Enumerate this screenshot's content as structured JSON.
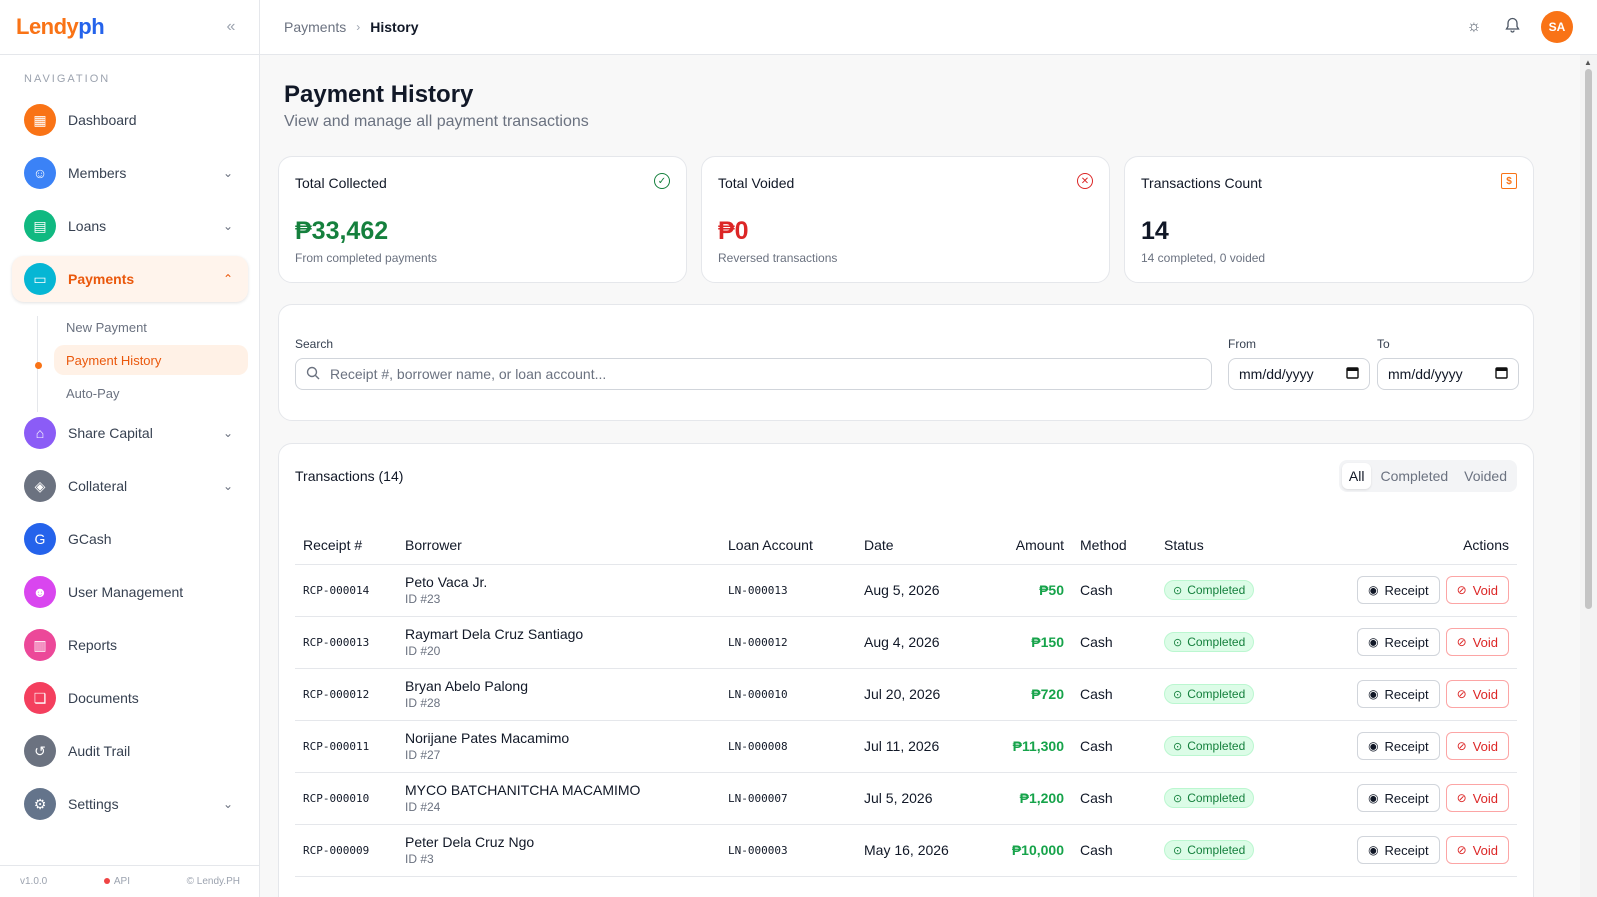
{
  "brand": {
    "part1": "Lendy",
    "part2": "ph"
  },
  "sidebar": {
    "nav_title": "NAVIGATION",
    "items": [
      {
        "label": "Dashboard",
        "icon": "dashboard-icon",
        "color": "#f97316",
        "expand": false
      },
      {
        "label": "Members",
        "icon": "members-icon",
        "color": "#3b82f6",
        "expand": true
      },
      {
        "label": "Loans",
        "icon": "loans-icon",
        "color": "#10b981",
        "expand": true
      },
      {
        "label": "Payments",
        "icon": "payments-icon",
        "color": "#06b6d4",
        "expand": true,
        "active": true
      },
      {
        "label": "Share Capital",
        "icon": "share-capital-icon",
        "color": "#8b5cf6",
        "expand": true
      },
      {
        "label": "Collateral",
        "icon": "collateral-icon",
        "color": "#6b7280",
        "expand": true
      },
      {
        "label": "GCash",
        "icon": "gcash-icon",
        "color": "#2563eb",
        "expand": false
      },
      {
        "label": "User Management",
        "icon": "user-management-icon",
        "color": "#d946ef",
        "expand": false
      },
      {
        "label": "Reports",
        "icon": "reports-icon",
        "color": "#ec4899",
        "expand": false
      },
      {
        "label": "Documents",
        "icon": "documents-icon",
        "color": "#f43f5e",
        "expand": false
      },
      {
        "label": "Audit Trail",
        "icon": "audit-trail-icon",
        "color": "#6b7280",
        "expand": false
      },
      {
        "label": "Settings",
        "icon": "settings-icon",
        "color": "#64748b",
        "expand": true
      }
    ],
    "sub_items": [
      {
        "label": "New Payment"
      },
      {
        "label": "Payment History",
        "active": true
      },
      {
        "label": "Auto-Pay"
      }
    ],
    "footer": {
      "version": "v1.0.0",
      "api": "API",
      "copyright": "© Lendy.PH"
    }
  },
  "header": {
    "crumb_parent": "Payments",
    "crumb_current": "History",
    "avatar": "SA"
  },
  "page": {
    "title": "Payment History",
    "subtitle": "View and manage all payment transactions"
  },
  "stats": [
    {
      "title": "Total Collected",
      "value": "₱33,462",
      "sub": "From completed payments",
      "color": "#15803d",
      "icon": "check-circle-icon"
    },
    {
      "title": "Total Voided",
      "value": "₱0",
      "sub": "Reversed transactions",
      "color": "#dc2626",
      "icon": "x-circle-icon"
    },
    {
      "title": "Transactions Count",
      "value": "14",
      "sub": "14 completed, 0 voided",
      "color": "#111827",
      "icon": "receipt-icon"
    }
  ],
  "filters": {
    "search_label": "Search",
    "search_placeholder": "Receipt #, borrower name, or loan account...",
    "from_label": "From",
    "to_label": "To",
    "date_placeholder": "mm/dd/yyyy"
  },
  "transactions": {
    "title": "Transactions (14)",
    "tabs": [
      "All",
      "Completed",
      "Voided"
    ],
    "columns": [
      "Receipt #",
      "Borrower",
      "Loan Account",
      "Date",
      "Amount",
      "Method",
      "Status",
      "Actions"
    ],
    "receipt_label": "Receipt",
    "void_label": "Void",
    "rows": [
      {
        "receipt": "RCP-000014",
        "name": "Peto Vaca Jr.",
        "id": "ID #23",
        "loan": "LN-000013",
        "date": "Aug 5, 2026",
        "amount": "₱50",
        "method": "Cash",
        "status": "Completed"
      },
      {
        "receipt": "RCP-000013",
        "name": "Raymart Dela Cruz Santiago",
        "id": "ID #20",
        "loan": "LN-000012",
        "date": "Aug 4, 2026",
        "amount": "₱150",
        "method": "Cash",
        "status": "Completed"
      },
      {
        "receipt": "RCP-000012",
        "name": "Bryan Abelo Palong",
        "id": "ID #28",
        "loan": "LN-000010",
        "date": "Jul 20, 2026",
        "amount": "₱720",
        "method": "Cash",
        "status": "Completed"
      },
      {
        "receipt": "RCP-000011",
        "name": "Norijane Pates Macamimo",
        "id": "ID #27",
        "loan": "LN-000008",
        "date": "Jul 11, 2026",
        "amount": "₱11,300",
        "method": "Cash",
        "status": "Completed"
      },
      {
        "receipt": "RCP-000010",
        "name": "MYCO BATCHANITCHA MACAMIMO",
        "id": "ID #24",
        "loan": "LN-000007",
        "date": "Jul 5, 2026",
        "amount": "₱1,200",
        "method": "Cash",
        "status": "Completed"
      },
      {
        "receipt": "RCP-000009",
        "name": "Peter Dela Cruz Ngo",
        "id": "ID #3",
        "loan": "LN-000003",
        "date": "May 16, 2026",
        "amount": "₱10,000",
        "method": "Cash",
        "status": "Completed"
      }
    ]
  }
}
